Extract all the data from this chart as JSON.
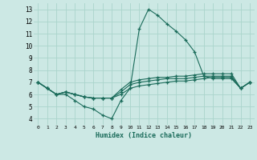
{
  "title": "",
  "xlabel": "Humidex (Indice chaleur)",
  "background_color": "#cce8e4",
  "grid_color": "#aad4cc",
  "line_color": "#1a6b5a",
  "xlim": [
    -0.5,
    23.5
  ],
  "ylim": [
    3.5,
    13.5
  ],
  "xticks": [
    0,
    1,
    2,
    3,
    4,
    5,
    6,
    7,
    8,
    9,
    10,
    11,
    12,
    13,
    14,
    15,
    16,
    17,
    18,
    19,
    20,
    21,
    22,
    23
  ],
  "yticks": [
    4,
    5,
    6,
    7,
    8,
    9,
    10,
    11,
    12,
    13
  ],
  "series": [
    [
      7.0,
      6.5,
      6.0,
      6.0,
      5.5,
      5.0,
      4.8,
      4.3,
      4.0,
      5.5,
      6.5,
      11.4,
      13.0,
      12.5,
      11.8,
      11.2,
      10.5,
      9.5,
      7.5,
      7.3,
      7.3,
      7.3,
      6.5,
      7.0
    ],
    [
      7.0,
      6.5,
      6.0,
      6.2,
      6.0,
      5.8,
      5.7,
      5.7,
      5.7,
      6.0,
      6.5,
      6.7,
      6.8,
      6.9,
      7.0,
      7.1,
      7.1,
      7.2,
      7.3,
      7.4,
      7.4,
      7.4,
      6.5,
      7.0
    ],
    [
      7.0,
      6.5,
      6.0,
      6.2,
      6.0,
      5.8,
      5.7,
      5.7,
      5.7,
      6.2,
      6.8,
      7.0,
      7.1,
      7.2,
      7.3,
      7.3,
      7.3,
      7.4,
      7.5,
      7.5,
      7.5,
      7.5,
      6.5,
      7.0
    ],
    [
      7.0,
      6.5,
      6.0,
      6.2,
      6.0,
      5.8,
      5.7,
      5.7,
      5.7,
      6.4,
      7.0,
      7.2,
      7.3,
      7.4,
      7.4,
      7.5,
      7.5,
      7.6,
      7.7,
      7.7,
      7.7,
      7.7,
      6.5,
      7.0
    ]
  ]
}
